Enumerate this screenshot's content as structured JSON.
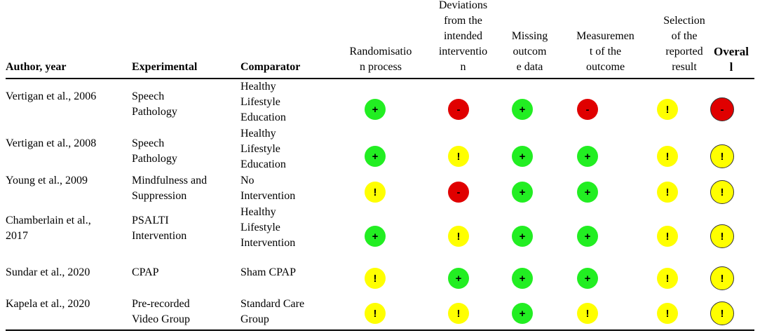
{
  "columns": [
    {
      "key": "author",
      "label": "Author, year",
      "bold": true
    },
    {
      "key": "experimental",
      "label": "Experimental",
      "bold": true
    },
    {
      "key": "comparator",
      "label": "Comparator",
      "bold": true
    },
    {
      "key": "randomisation",
      "label": "Randomisatio\nn process",
      "bold": false
    },
    {
      "key": "deviations",
      "label": "Deviations\nfrom the\nintended\ninterventio\nn",
      "bold": false
    },
    {
      "key": "missing",
      "label": "Missing\noutcom\ne data",
      "bold": false
    },
    {
      "key": "measurement",
      "label": "Measuremen\nt of the\noutcome",
      "bold": false
    },
    {
      "key": "selection",
      "label": "Selection\nof the\nreported\nresult",
      "bold": false
    },
    {
      "key": "overall",
      "label": "Overal\nl",
      "bold": true
    }
  ],
  "legend_colors": {
    "+": "#22ee22",
    "!": "#ffff00",
    "-": "#e00000"
  },
  "rows": [
    {
      "author": "Vertigan et al., 2006",
      "experimental": "Speech\nPathology",
      "comparator": "Healthy\nLifestyle\nEducation",
      "ratings": [
        "+",
        "-",
        "+",
        "-",
        "!",
        "-"
      ]
    },
    {
      "author": "Vertigan et al., 2008",
      "experimental": "Speech\nPathology",
      "comparator": "Healthy\nLifestyle\nEducation",
      "ratings": [
        "+",
        "!",
        "+",
        "+",
        "!",
        "!"
      ]
    },
    {
      "author": "Young et al., 2009",
      "experimental": "Mindfulness and\nSuppression",
      "comparator": "No\nIntervention",
      "ratings": [
        "!",
        "-",
        "+",
        "+",
        "!",
        "!"
      ]
    },
    {
      "author": "Chamberlain et al.,\n2017",
      "experimental": "PSALTI\nIntervention",
      "comparator": "Healthy\nLifestyle\nIntervention",
      "ratings": [
        "+",
        "!",
        "+",
        "+",
        "!",
        "!"
      ]
    },
    {
      "author": "Sundar et al., 2020",
      "experimental": "CPAP",
      "comparator": "Sham CPAP",
      "ratings": [
        "!",
        "+",
        "+",
        "+",
        "!",
        "!"
      ]
    },
    {
      "author": "Kapela et al., 2020",
      "experimental": "Pre-recorded\nVideo Group",
      "comparator": "Standard Care\nGroup",
      "ratings": [
        "!",
        "!",
        "+",
        "!",
        "!",
        "!"
      ]
    }
  ]
}
